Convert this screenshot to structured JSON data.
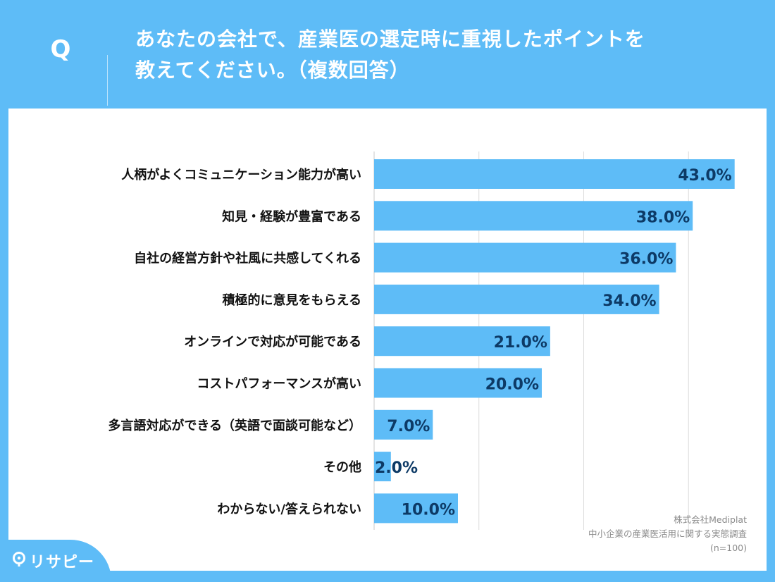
{
  "header": {
    "q_mark": "Q",
    "title_line1": "あなたの会社で、産業医の選定時に重視したポイントを",
    "title_line2": "教えてください。（複数回答）"
  },
  "source": {
    "line1": "株式会社Mediplat",
    "line2": "中小企業の産業医活用に関する実態調査",
    "line3": "(n=100)"
  },
  "logo": {
    "text": "リサピー"
  },
  "colors": {
    "background": "#5ebcf7",
    "bar": "#5ebcf7",
    "value_text": "#0d3a66",
    "label_text": "#111111",
    "grid": "#dcdcdc"
  },
  "chart_data": {
    "type": "bar",
    "orientation": "horizontal",
    "categories": [
      "人柄がよくコミュニケーション能力が高い",
      "知見・経験が豊富である",
      "自社の経営方針や社風に共感してくれる",
      "積極的に意見をもらえる",
      "オンラインで対応が可能である",
      "コストパフォーマンスが高い",
      "多言語対応ができる（英語で面談可能など）",
      "その他",
      "わからない/答えられない"
    ],
    "values": [
      43.0,
      38.0,
      36.0,
      34.0,
      21.0,
      20.0,
      7.0,
      2.0,
      10.0
    ],
    "value_labels": [
      "43.0%",
      "38.0%",
      "36.0%",
      "34.0%",
      "21.0%",
      "20.0%",
      "7.0%",
      "2.0%",
      "10.0%"
    ],
    "xlim": [
      0,
      50
    ],
    "gridlines": [
      0,
      12.5,
      25,
      37.5,
      50
    ],
    "grid": true,
    "title": "",
    "xlabel": "",
    "ylabel": ""
  }
}
